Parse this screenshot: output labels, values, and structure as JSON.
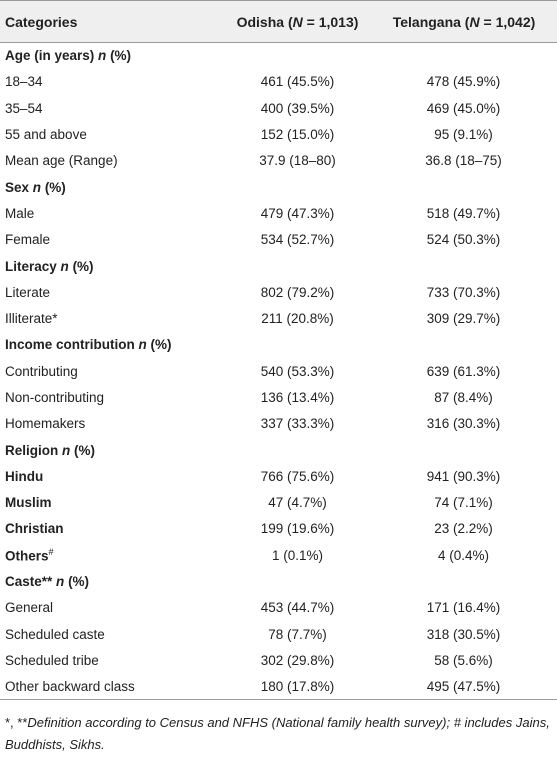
{
  "header": {
    "categories": "Categories",
    "odisha": [
      "Odisha (",
      "N",
      " = 1,013)"
    ],
    "telangana": [
      "Telangana (",
      "N",
      " = 1,042)"
    ]
  },
  "sections": [
    {
      "title": "Age (in years)",
      "var": "n",
      "unit": "(%)",
      "rows": [
        {
          "label": "18–34",
          "bold": false,
          "odisha": "461 (45.5%)",
          "telangana": "478 (45.9%)"
        },
        {
          "label": "35–54",
          "bold": false,
          "odisha": "400 (39.5%)",
          "telangana": "469 (45.0%)"
        },
        {
          "label": "55 and above",
          "bold": false,
          "odisha": "152 (15.0%)",
          "telangana": "95 (9.1%)"
        },
        {
          "label": "Mean age (Range)",
          "bold": false,
          "odisha": "37.9 (18–80)",
          "telangana": "36.8 (18–75)"
        }
      ]
    },
    {
      "title": "Sex",
      "var": "n",
      "unit": "(%)",
      "rows": [
        {
          "label": "Male",
          "bold": false,
          "odisha": "479 (47.3%)",
          "telangana": "518 (49.7%)"
        },
        {
          "label": "Female",
          "bold": false,
          "odisha": "534 (52.7%)",
          "telangana": "524 (50.3%)"
        }
      ]
    },
    {
      "title": "Literacy",
      "var": "n",
      "unit": "(%)",
      "rows": [
        {
          "label": "Literate",
          "bold": false,
          "odisha": "802 (79.2%)",
          "telangana": "733 (70.3%)"
        },
        {
          "label": "Illiterate*",
          "bold": false,
          "odisha": "211 (20.8%)",
          "telangana": "309 (29.7%)"
        }
      ]
    },
    {
      "title": "Income contribution",
      "var": "n",
      "unit": "(%)",
      "rows": [
        {
          "label": "Contributing",
          "bold": false,
          "odisha": "540 (53.3%)",
          "telangana": "639 (61.3%)"
        },
        {
          "label": "Non-contributing",
          "bold": false,
          "odisha": "136 (13.4%)",
          "telangana": "87 (8.4%)"
        },
        {
          "label": "Homemakers",
          "bold": false,
          "odisha": "337 (33.3%)",
          "telangana": "316 (30.3%)"
        }
      ]
    },
    {
      "title": "Religion",
      "var": "n",
      "unit": "(%)",
      "rows": [
        {
          "label": "Hindu",
          "bold": true,
          "odisha": "766 (75.6%)",
          "telangana": "941 (90.3%)"
        },
        {
          "label": "Muslim",
          "bold": true,
          "odisha": "47 (4.7%)",
          "telangana": "74 (7.1%)"
        },
        {
          "label": "Christian",
          "bold": true,
          "odisha": "199 (19.6%)",
          "telangana": "23 (2.2%)"
        },
        {
          "label": "Others",
          "sup": "#",
          "bold": true,
          "odisha": "1 (0.1%)",
          "telangana": "4 (0.4%)"
        }
      ]
    },
    {
      "title": "Caste**",
      "var": "n",
      "unit": "(%)",
      "rows": [
        {
          "label": "General",
          "bold": false,
          "odisha": "453 (44.7%)",
          "telangana": "171 (16.4%)"
        },
        {
          "label": "Scheduled caste",
          "bold": false,
          "odisha": "78 (7.7%)",
          "telangana": "318 (30.5%)"
        },
        {
          "label": "Scheduled tribe",
          "bold": false,
          "odisha": "302 (29.8%)",
          "telangana": "58 (5.6%)"
        },
        {
          "label": "Other backward class",
          "bold": false,
          "odisha": "180 (17.8%)",
          "telangana": "495 (47.5%)"
        }
      ]
    }
  ],
  "footnote": {
    "marks": "*, **",
    "text": "Definition according to Census and NFHS (National family health survey); # includes Jains, Buddhists, Sikhs."
  }
}
